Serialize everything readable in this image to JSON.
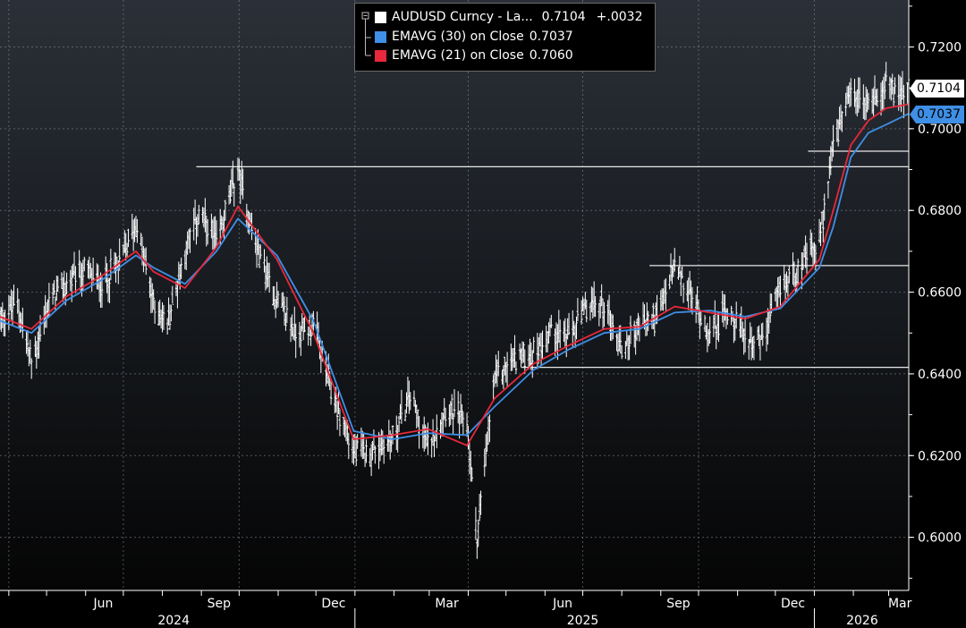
{
  "legend": {
    "items": [
      {
        "label": "AUDUSD Curncy - La...",
        "value": "0.7104",
        "change": "+.0032",
        "color": "#ffffff"
      },
      {
        "label": "EMAVG (30)  on Close",
        "value": "0.7037",
        "color": "#3f8fe6"
      },
      {
        "label": "EMAVG (21)  on Close",
        "value": "0.7060",
        "color": "#e8283c"
      }
    ]
  },
  "last_tags": {
    "price": {
      "text": "0.7104",
      "color": "#ffffff"
    },
    "ema30": {
      "text": "0.7037",
      "color": "#3f8fe6"
    }
  },
  "chart_data": {
    "type": "line",
    "title": "",
    "xlabel": "",
    "ylabel": "",
    "ylim": [
      0.587,
      0.7315
    ],
    "yticks": [
      "0.6000",
      "0.6200",
      "0.6400",
      "0.6600",
      "0.6800",
      "0.7000",
      "0.7200"
    ],
    "xtick_labels": [
      "Jun",
      "Sep",
      "Dec",
      "Mar",
      "Jun",
      "Sep",
      "Dec",
      "Mar"
    ],
    "year_labels": [
      "2024",
      "2025",
      "2026"
    ],
    "grid": true,
    "legend_position": "top-center",
    "x_range": [
      "2024-03-25",
      "2026-03-17"
    ],
    "series": [
      {
        "name": "AUDUSD Curncy - La...",
        "color": "#ffffff",
        "x": [
          "2024-03-25",
          "2024-04-08",
          "2024-04-19",
          "2024-05-03",
          "2024-05-17",
          "2024-05-31",
          "2024-06-14",
          "2024-06-28",
          "2024-07-11",
          "2024-07-25",
          "2024-08-05",
          "2024-08-19",
          "2024-08-30",
          "2024-09-13",
          "2024-09-30",
          "2024-10-14",
          "2024-10-31",
          "2024-11-15",
          "2024-11-29",
          "2024-12-13",
          "2024-12-31",
          "2025-01-13",
          "2025-01-31",
          "2025-02-14",
          "2025-02-28",
          "2025-03-14",
          "2025-03-31",
          "2025-04-08",
          "2025-04-22",
          "2025-05-09",
          "2025-05-23",
          "2025-06-06",
          "2025-06-20",
          "2025-07-04",
          "2025-07-18",
          "2025-08-01",
          "2025-08-15",
          "2025-08-29",
          "2025-09-12",
          "2025-09-26",
          "2025-10-10",
          "2025-10-24",
          "2025-11-07",
          "2025-11-21",
          "2025-12-05",
          "2025-12-19",
          "2026-01-05",
          "2026-01-16",
          "2026-01-30",
          "2026-02-13",
          "2026-02-27",
          "2026-03-13",
          "2026-03-17"
        ],
        "values": [
          0.6535,
          0.6575,
          0.642,
          0.6575,
          0.662,
          0.665,
          0.662,
          0.667,
          0.677,
          0.657,
          0.652,
          0.67,
          0.679,
          0.672,
          0.69,
          0.672,
          0.658,
          0.65,
          0.652,
          0.636,
          0.621,
          0.621,
          0.624,
          0.635,
          0.622,
          0.632,
          0.628,
          0.6,
          0.639,
          0.644,
          0.645,
          0.651,
          0.649,
          0.656,
          0.657,
          0.646,
          0.652,
          0.654,
          0.666,
          0.658,
          0.65,
          0.656,
          0.649,
          0.648,
          0.661,
          0.666,
          0.672,
          0.696,
          0.708,
          0.706,
          0.711,
          0.708,
          0.7104
        ]
      },
      {
        "name": "EMAVG (30)  on Close",
        "color": "#3f8fe6",
        "x": [
          "2024-03-25",
          "2024-04-19",
          "2024-05-17",
          "2024-06-14",
          "2024-07-11",
          "2024-07-25",
          "2024-08-19",
          "2024-09-13",
          "2024-09-30",
          "2024-10-31",
          "2024-11-29",
          "2024-12-31",
          "2025-01-31",
          "2025-02-28",
          "2025-03-31",
          "2025-04-22",
          "2025-05-23",
          "2025-06-20",
          "2025-07-18",
          "2025-08-15",
          "2025-09-12",
          "2025-10-10",
          "2025-11-07",
          "2025-12-05",
          "2026-01-05",
          "2026-01-16",
          "2026-01-30",
          "2026-02-13",
          "2026-02-27",
          "2026-03-17"
        ],
        "values": [
          0.653,
          0.65,
          0.658,
          0.663,
          0.669,
          0.666,
          0.662,
          0.67,
          0.678,
          0.669,
          0.653,
          0.626,
          0.624,
          0.6255,
          0.625,
          0.632,
          0.641,
          0.646,
          0.65,
          0.651,
          0.655,
          0.6555,
          0.654,
          0.656,
          0.666,
          0.676,
          0.693,
          0.699,
          0.701,
          0.7037
        ]
      },
      {
        "name": "EMAVG (21)  on Close",
        "color": "#e8283c",
        "x": [
          "2024-03-25",
          "2024-04-19",
          "2024-05-17",
          "2024-06-14",
          "2024-07-11",
          "2024-07-25",
          "2024-08-19",
          "2024-09-13",
          "2024-09-30",
          "2024-10-31",
          "2024-11-29",
          "2024-12-31",
          "2025-01-31",
          "2025-02-28",
          "2025-03-31",
          "2025-04-22",
          "2025-05-23",
          "2025-06-20",
          "2025-07-18",
          "2025-08-15",
          "2025-09-12",
          "2025-10-10",
          "2025-11-07",
          "2025-12-05",
          "2026-01-05",
          "2026-01-16",
          "2026-01-30",
          "2026-02-13",
          "2026-02-27",
          "2026-03-17"
        ],
        "values": [
          0.654,
          0.651,
          0.659,
          0.664,
          0.67,
          0.665,
          0.661,
          0.671,
          0.681,
          0.668,
          0.65,
          0.624,
          0.625,
          0.6265,
          0.6225,
          0.634,
          0.6425,
          0.647,
          0.651,
          0.6515,
          0.6565,
          0.655,
          0.6535,
          0.6565,
          0.668,
          0.68,
          0.696,
          0.702,
          0.705,
          0.706
        ]
      }
    ],
    "horizontal_lines": [
      {
        "y": 0.6907,
        "x_start": "2024-08-28",
        "x_end": "2026-03-17"
      },
      {
        "y": 0.6945,
        "x_start": "2025-12-27",
        "x_end": "2026-03-17"
      },
      {
        "y": 0.6665,
        "x_start": "2025-08-23",
        "x_end": "2026-03-17"
      },
      {
        "y": 0.6416,
        "x_start": "2025-05-13",
        "x_end": "2026-03-17"
      }
    ]
  }
}
